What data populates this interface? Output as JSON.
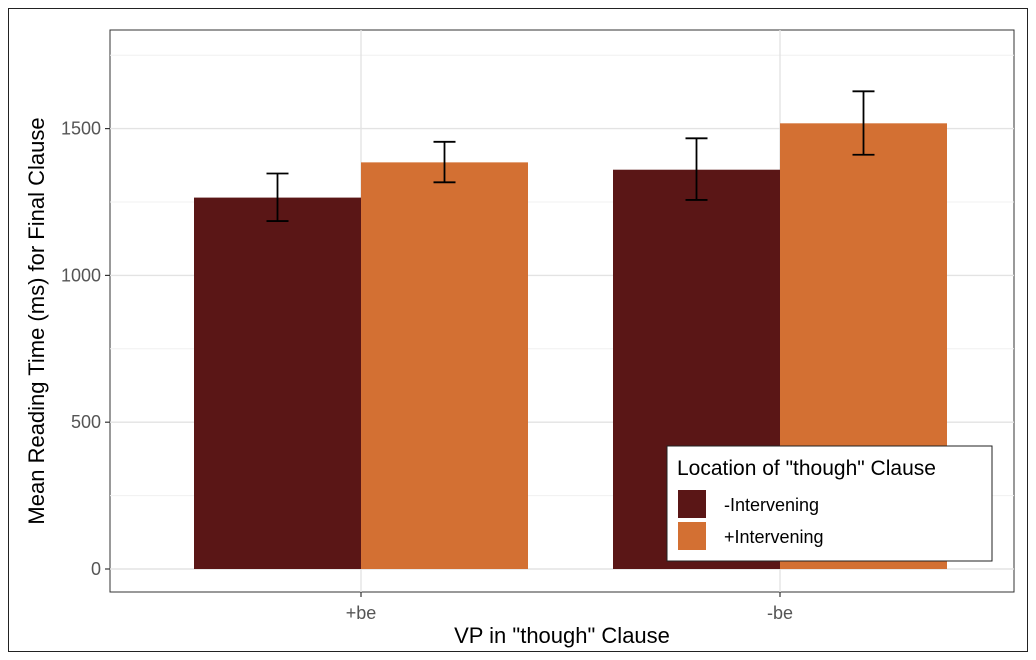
{
  "chart_data": {
    "type": "bar",
    "categories": [
      "+be",
      "-be"
    ],
    "series": [
      {
        "name": "-Intervening",
        "values": [
          1265,
          1360
        ],
        "error_low": [
          1185,
          1257
        ],
        "error_high": [
          1347,
          1467
        ],
        "color": "#5a1616"
      },
      {
        "name": "+Intervening",
        "values": [
          1385,
          1518
        ],
        "error_low": [
          1317,
          1411
        ],
        "error_high": [
          1455,
          1627
        ],
        "color": "#d37033"
      }
    ],
    "title": "",
    "xlabel": "VP in \"though\" Clause",
    "ylabel": "Mean Reading Time (ms) for Final Clause",
    "ylim": [
      0,
      1780
    ],
    "yticks": [
      0,
      500,
      1000,
      1500
    ],
    "ytick_labels": [
      "0",
      "500",
      "1000",
      "1500"
    ],
    "grid": true,
    "legend": {
      "title": "Location of \"though\" Clause",
      "placement": "bottom-right inside"
    }
  }
}
